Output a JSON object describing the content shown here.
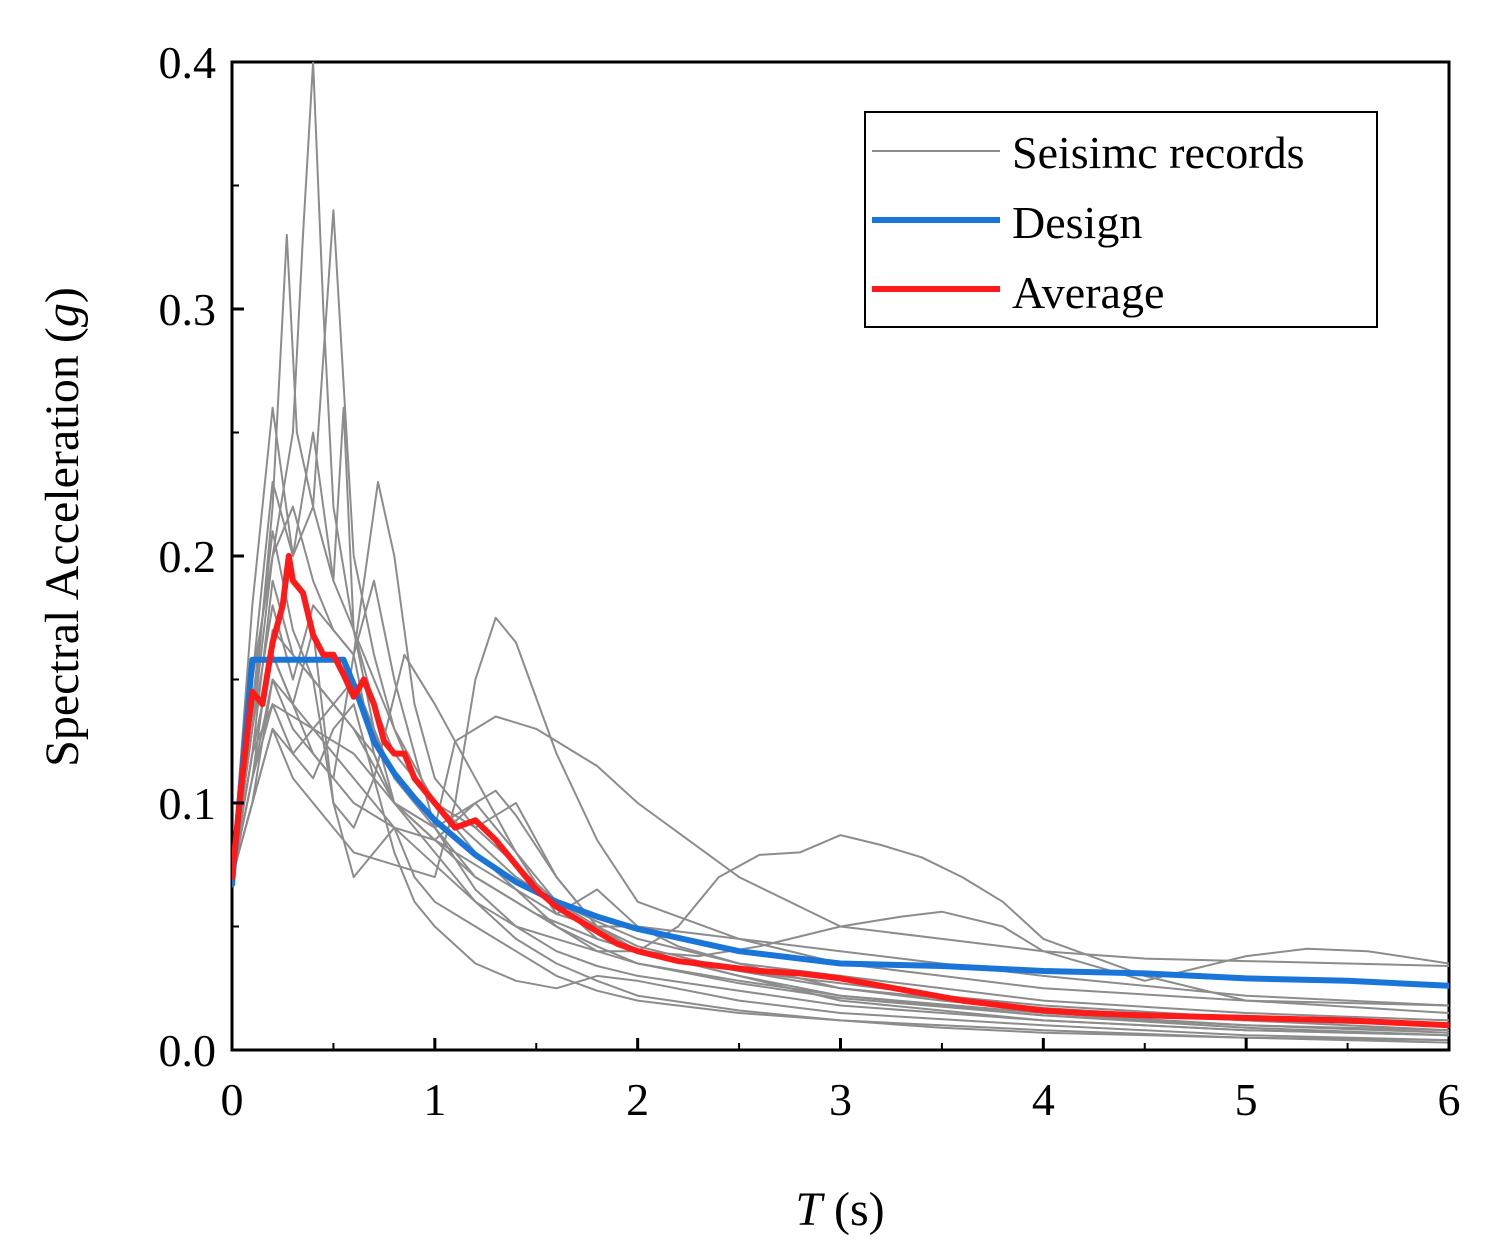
{
  "chart_data": {
    "type": "line",
    "title": "",
    "xlabel_italic": "T",
    "xlabel_unit": " (s)",
    "ylabel_prefix": "Spectral Acceleration (",
    "ylabel_italic": "g",
    "ylabel_suffix": ")",
    "xlim": [
      0,
      6
    ],
    "ylim": [
      0.0,
      0.4
    ],
    "xticks": [
      0,
      1,
      2,
      3,
      4,
      5,
      6
    ],
    "yticks": [
      0.0,
      0.1,
      0.2,
      0.3,
      0.4
    ],
    "xtick_labels": [
      "0",
      "1",
      "2",
      "3",
      "4",
      "5",
      "6"
    ],
    "ytick_labels": [
      "0.0",
      "0.1",
      "0.2",
      "0.3",
      "0.4"
    ],
    "grid": false,
    "legend_position": "top-right",
    "legend": [
      {
        "name": "Seisimc records",
        "color": "#8c8c8c"
      },
      {
        "name": "Design",
        "color": "#1a75d9"
      },
      {
        "name": "Average",
        "color": "#ff1a1a"
      }
    ],
    "series": [
      {
        "name": "Design",
        "color": "#1a75d9",
        "x": [
          0,
          0.1,
          0.2,
          0.3,
          0.4,
          0.55,
          0.6,
          0.7,
          0.8,
          0.9,
          1.0,
          1.2,
          1.4,
          1.6,
          1.8,
          2.0,
          2.5,
          3.0,
          3.5,
          4.0,
          4.5,
          5.0,
          5.5,
          6.0
        ],
        "y": [
          0.067,
          0.158,
          0.158,
          0.158,
          0.158,
          0.158,
          0.148,
          0.125,
          0.112,
          0.102,
          0.093,
          0.079,
          0.068,
          0.06,
          0.054,
          0.049,
          0.04,
          0.035,
          0.034,
          0.032,
          0.031,
          0.029,
          0.028,
          0.026
        ]
      },
      {
        "name": "Average",
        "color": "#ff1a1a",
        "x": [
          0,
          0.05,
          0.1,
          0.15,
          0.2,
          0.25,
          0.28,
          0.3,
          0.35,
          0.4,
          0.45,
          0.5,
          0.55,
          0.6,
          0.65,
          0.7,
          0.75,
          0.8,
          0.85,
          0.9,
          1.0,
          1.1,
          1.2,
          1.3,
          1.4,
          1.5,
          1.6,
          1.7,
          1.8,
          1.9,
          2.0,
          2.2,
          2.4,
          2.6,
          2.8,
          3.0,
          3.2,
          3.4,
          3.6,
          3.8,
          4.0,
          4.2,
          4.5,
          5.0,
          5.5,
          6.0
        ],
        "y": [
          0.07,
          0.11,
          0.145,
          0.14,
          0.165,
          0.18,
          0.2,
          0.19,
          0.185,
          0.168,
          0.16,
          0.16,
          0.152,
          0.143,
          0.15,
          0.14,
          0.125,
          0.12,
          0.12,
          0.11,
          0.1,
          0.09,
          0.093,
          0.085,
          0.075,
          0.065,
          0.058,
          0.053,
          0.048,
          0.043,
          0.04,
          0.036,
          0.034,
          0.032,
          0.031,
          0.029,
          0.026,
          0.023,
          0.02,
          0.018,
          0.016,
          0.015,
          0.014,
          0.013,
          0.012,
          0.01
        ]
      }
    ],
    "records": [
      {
        "x": [
          0,
          0.1,
          0.2,
          0.3,
          0.35,
          0.4,
          0.45,
          0.5,
          0.6,
          0.7,
          0.8,
          0.9,
          1.0,
          1.2,
          1.4,
          1.6,
          1.8,
          2.0,
          2.5,
          3.0,
          3.5,
          4.0,
          5.0,
          6.0
        ],
        "y": [
          0.07,
          0.15,
          0.2,
          0.25,
          0.33,
          0.4,
          0.3,
          0.22,
          0.17,
          0.15,
          0.13,
          0.11,
          0.1,
          0.085,
          0.07,
          0.06,
          0.052,
          0.045,
          0.035,
          0.025,
          0.02,
          0.016,
          0.012,
          0.01
        ]
      },
      {
        "x": [
          0,
          0.1,
          0.2,
          0.27,
          0.32,
          0.4,
          0.5,
          0.6,
          0.7,
          0.8,
          1.0,
          1.2,
          1.4,
          1.6,
          1.8,
          2.0,
          2.5,
          3.0,
          4.0,
          5.0,
          6.0
        ],
        "y": [
          0.07,
          0.13,
          0.22,
          0.33,
          0.25,
          0.22,
          0.34,
          0.2,
          0.16,
          0.13,
          0.1,
          0.08,
          0.065,
          0.05,
          0.04,
          0.035,
          0.028,
          0.022,
          0.015,
          0.01,
          0.008
        ]
      },
      {
        "x": [
          0,
          0.1,
          0.2,
          0.3,
          0.4,
          0.5,
          0.55,
          0.6,
          0.7,
          0.8,
          1.0,
          1.2,
          1.4,
          1.6,
          1.8,
          2.0,
          2.5,
          3.0,
          4.0,
          5.0,
          6.0
        ],
        "y": [
          0.07,
          0.18,
          0.26,
          0.2,
          0.22,
          0.19,
          0.26,
          0.17,
          0.13,
          0.11,
          0.09,
          0.07,
          0.06,
          0.05,
          0.042,
          0.035,
          0.027,
          0.021,
          0.014,
          0.01,
          0.007
        ]
      },
      {
        "x": [
          0,
          0.1,
          0.2,
          0.3,
          0.4,
          0.5,
          0.6,
          0.72,
          0.8,
          0.9,
          1.0,
          1.2,
          1.4,
          1.6,
          1.8,
          2.0,
          2.5,
          3.0,
          4.0,
          5.0,
          6.0
        ],
        "y": [
          0.07,
          0.12,
          0.16,
          0.14,
          0.12,
          0.11,
          0.16,
          0.23,
          0.2,
          0.14,
          0.11,
          0.09,
          0.075,
          0.06,
          0.05,
          0.042,
          0.032,
          0.025,
          0.017,
          0.012,
          0.008
        ]
      },
      {
        "x": [
          0,
          0.1,
          0.2,
          0.3,
          0.4,
          0.5,
          0.6,
          0.8,
          1.0,
          1.1,
          1.2,
          1.3,
          1.4,
          1.6,
          1.8,
          2.0,
          2.5,
          3.0,
          3.5,
          4.0,
          5.0,
          6.0
        ],
        "y": [
          0.07,
          0.1,
          0.13,
          0.11,
          0.1,
          0.09,
          0.08,
          0.075,
          0.07,
          0.1,
          0.15,
          0.175,
          0.165,
          0.12,
          0.085,
          0.06,
          0.045,
          0.035,
          0.03,
          0.025,
          0.02,
          0.018
        ]
      },
      {
        "x": [
          0,
          0.1,
          0.2,
          0.4,
          0.6,
          0.8,
          1.0,
          1.1,
          1.3,
          1.5,
          1.8,
          2.0,
          2.5,
          3.0,
          3.5,
          4.0,
          4.5,
          5.0,
          5.5,
          6.0
        ],
        "y": [
          0.07,
          0.12,
          0.14,
          0.13,
          0.12,
          0.1,
          0.09,
          0.125,
          0.135,
          0.13,
          0.115,
          0.1,
          0.07,
          0.05,
          0.045,
          0.04,
          0.037,
          0.036,
          0.035,
          0.034
        ]
      },
      {
        "x": [
          0,
          0.1,
          0.2,
          0.4,
          0.6,
          0.8,
          1.0,
          1.2,
          1.4,
          1.6,
          1.8,
          2.0,
          2.2,
          2.4,
          2.6,
          2.8,
          3.0,
          3.2,
          3.4,
          3.6,
          3.8,
          4.0,
          4.5,
          5.0,
          6.0
        ],
        "y": [
          0.07,
          0.1,
          0.15,
          0.13,
          0.11,
          0.09,
          0.075,
          0.06,
          0.05,
          0.045,
          0.04,
          0.04,
          0.05,
          0.07,
          0.079,
          0.08,
          0.087,
          0.083,
          0.078,
          0.07,
          0.06,
          0.045,
          0.03,
          0.02,
          0.015
        ]
      },
      {
        "x": [
          0,
          0.1,
          0.2,
          0.4,
          0.6,
          0.8,
          1.0,
          1.2,
          1.5,
          1.8,
          2.0,
          2.3,
          2.6,
          3.0,
          3.3,
          3.5,
          3.8,
          4.0,
          4.5,
          5.0,
          5.3,
          5.6,
          6.0
        ],
        "y": [
          0.07,
          0.11,
          0.17,
          0.15,
          0.13,
          0.1,
          0.085,
          0.07,
          0.055,
          0.045,
          0.04,
          0.038,
          0.042,
          0.05,
          0.054,
          0.056,
          0.05,
          0.04,
          0.028,
          0.038,
          0.041,
          0.04,
          0.035
        ]
      },
      {
        "x": [
          0,
          0.1,
          0.2,
          0.3,
          0.4,
          0.5,
          0.6,
          0.7,
          0.85,
          1.0,
          1.2,
          1.4,
          1.6,
          1.8,
          2.0,
          2.5,
          3.0,
          3.5,
          4.0,
          5.0,
          6.0
        ],
        "y": [
          0.07,
          0.14,
          0.21,
          0.17,
          0.15,
          0.1,
          0.09,
          0.11,
          0.16,
          0.14,
          0.11,
          0.08,
          0.06,
          0.045,
          0.04,
          0.032,
          0.027,
          0.022,
          0.018,
          0.013,
          0.01
        ]
      },
      {
        "x": [
          0,
          0.1,
          0.2,
          0.3,
          0.4,
          0.5,
          0.6,
          0.7,
          0.8,
          0.9,
          1.0,
          1.2,
          1.4,
          1.6,
          1.8,
          2.0,
          2.5,
          3.0,
          4.0,
          5.0,
          6.0
        ],
        "y": [
          0.07,
          0.13,
          0.18,
          0.15,
          0.18,
          0.17,
          0.16,
          0.19,
          0.15,
          0.12,
          0.09,
          0.065,
          0.05,
          0.04,
          0.034,
          0.03,
          0.024,
          0.018,
          0.012,
          0.008,
          0.006
        ]
      },
      {
        "x": [
          0,
          0.1,
          0.2,
          0.3,
          0.4,
          0.5,
          0.6,
          0.7,
          0.8,
          0.9,
          1.0,
          1.2,
          1.4,
          1.6,
          1.8,
          2.0,
          2.5,
          3.0,
          4.0,
          5.0,
          6.0
        ],
        "y": [
          0.07,
          0.12,
          0.16,
          0.14,
          0.17,
          0.1,
          0.07,
          0.08,
          0.09,
          0.07,
          0.06,
          0.05,
          0.04,
          0.03,
          0.024,
          0.02,
          0.015,
          0.012,
          0.008,
          0.005,
          0.004
        ]
      },
      {
        "x": [
          0,
          0.1,
          0.2,
          0.3,
          0.4,
          0.5,
          0.6,
          0.7,
          0.8,
          0.9,
          1.0,
          1.2,
          1.4,
          1.6,
          1.8,
          2.0,
          2.5,
          3.0,
          4.0,
          5.0,
          6.0
        ],
        "y": [
          0.07,
          0.11,
          0.14,
          0.12,
          0.11,
          0.13,
          0.14,
          0.11,
          0.08,
          0.06,
          0.05,
          0.035,
          0.028,
          0.025,
          0.03,
          0.028,
          0.02,
          0.015,
          0.01,
          0.006,
          0.004
        ]
      },
      {
        "x": [
          0,
          0.1,
          0.2,
          0.3,
          0.4,
          0.5,
          0.6,
          0.7,
          0.8,
          1.0,
          1.2,
          1.4,
          1.6,
          1.8,
          2.0,
          2.2,
          2.5,
          3.0,
          3.5,
          4.0,
          5.0,
          6.0
        ],
        "y": [
          0.07,
          0.12,
          0.19,
          0.16,
          0.15,
          0.14,
          0.13,
          0.12,
          0.1,
          0.09,
          0.1,
          0.08,
          0.055,
          0.065,
          0.05,
          0.042,
          0.035,
          0.03,
          0.025,
          0.02,
          0.015,
          0.012
        ]
      },
      {
        "x": [
          0,
          0.1,
          0.2,
          0.3,
          0.4,
          0.5,
          0.6,
          0.7,
          0.8,
          1.0,
          1.2,
          1.4,
          1.6,
          1.8,
          2.0,
          2.5,
          3.0,
          3.5,
          4.0,
          5.0,
          6.0
        ],
        "y": [
          0.07,
          0.1,
          0.13,
          0.12,
          0.13,
          0.14,
          0.15,
          0.13,
          0.1,
          0.08,
          0.06,
          0.045,
          0.035,
          0.028,
          0.022,
          0.016,
          0.012,
          0.009,
          0.007,
          0.005,
          0.003
        ]
      },
      {
        "x": [
          0,
          0.1,
          0.2,
          0.3,
          0.4,
          0.5,
          0.6,
          0.7,
          0.8,
          1.0,
          1.2,
          1.4,
          1.6,
          1.8,
          2.0,
          2.5,
          3.0,
          4.0,
          5.0,
          6.0
        ],
        "y": [
          0.07,
          0.13,
          0.2,
          0.22,
          0.19,
          0.17,
          0.16,
          0.12,
          0.1,
          0.085,
          0.075,
          0.065,
          0.055,
          0.05,
          0.05,
          0.045,
          0.04,
          0.03,
          0.022,
          0.018
        ]
      },
      {
        "x": [
          0,
          0.1,
          0.2,
          0.3,
          0.4,
          0.5,
          0.6,
          0.7,
          0.8,
          0.9,
          1.0,
          1.2,
          1.4,
          1.6,
          1.8,
          2.0,
          2.5,
          3.0,
          4.0,
          5.0,
          6.0
        ],
        "y": [
          0.07,
          0.15,
          0.23,
          0.2,
          0.25,
          0.19,
          0.17,
          0.14,
          0.12,
          0.11,
          0.1,
          0.09,
          0.1,
          0.07,
          0.05,
          0.04,
          0.03,
          0.02,
          0.012,
          0.008,
          0.006
        ]
      },
      {
        "x": [
          0,
          0.1,
          0.2,
          0.3,
          0.4,
          0.5,
          0.6,
          0.8,
          1.0,
          1.2,
          1.3,
          1.4,
          1.6,
          1.8,
          2.0,
          2.5,
          3.0,
          4.0,
          5.0,
          6.0
        ],
        "y": [
          0.07,
          0.11,
          0.15,
          0.13,
          0.12,
          0.11,
          0.1,
          0.09,
          0.085,
          0.1,
          0.105,
          0.095,
          0.07,
          0.05,
          0.04,
          0.03,
          0.022,
          0.014,
          0.009,
          0.006
        ]
      }
    ]
  }
}
